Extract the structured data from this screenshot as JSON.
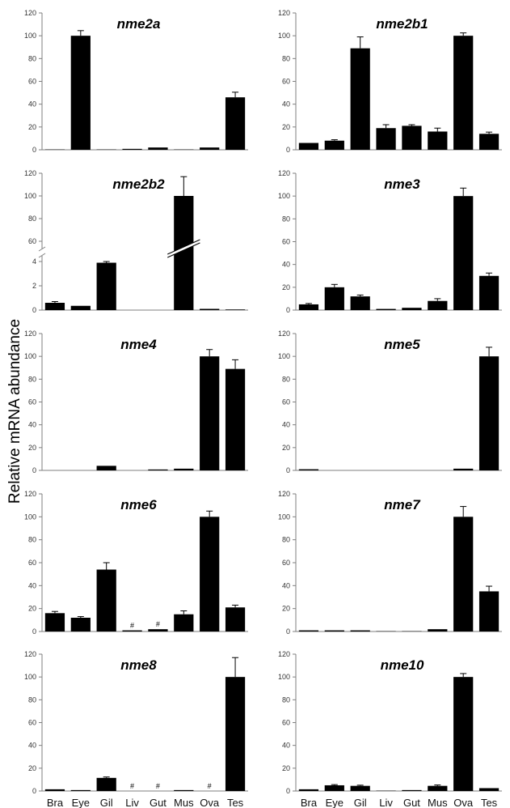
{
  "figure": {
    "ylabel": "Relative mRNA abundance",
    "categories": [
      "Bra",
      "Eye",
      "Gil",
      "Liv",
      "Gut",
      "Mus",
      "Ova",
      "Tes"
    ],
    "colors": {
      "bar": "#000000",
      "axis": "#7f7f7f"
    }
  },
  "chart_data": [
    {
      "type": "bar",
      "title": "nme2a",
      "ylim": [
        0,
        120
      ],
      "yticks": [
        0,
        20,
        40,
        60,
        80,
        100,
        120
      ],
      "categories": [
        "Bra",
        "Eye",
        "Gil",
        "Liv",
        "Gut",
        "Mus",
        "Ova",
        "Tes"
      ],
      "values": [
        0.3,
        100,
        0.3,
        0.8,
        2,
        0.3,
        2,
        46
      ],
      "errors": [
        0,
        4.5,
        0,
        0,
        0,
        0,
        0,
        4.5
      ]
    },
    {
      "type": "bar",
      "title": "nme2b1",
      "ylim": [
        0,
        120
      ],
      "yticks": [
        0,
        20,
        40,
        60,
        80,
        100,
        120
      ],
      "categories": [
        "Bra",
        "Eye",
        "Gil",
        "Liv",
        "Gut",
        "Mus",
        "Ova",
        "Tes"
      ],
      "values": [
        6,
        8,
        89,
        19,
        21,
        16,
        100,
        14
      ],
      "errors": [
        0,
        0.8,
        10,
        3,
        1,
        3,
        2.5,
        1.5
      ]
    },
    {
      "type": "bar",
      "title": "nme2b2",
      "broken_axis": true,
      "yticks": [
        0,
        2,
        4,
        60,
        80,
        100,
        120
      ],
      "categories": [
        "Bra",
        "Eye",
        "Gil",
        "Liv",
        "Gut",
        "Mus",
        "Ova",
        "Tes"
      ],
      "values": [
        0.6,
        0.35,
        3.9,
        0,
        0,
        100,
        0.1,
        0.05
      ],
      "errors": [
        0.1,
        0,
        0.35,
        0,
        0,
        17,
        0,
        0
      ]
    },
    {
      "type": "bar",
      "title": "nme3",
      "ylim": [
        0,
        120
      ],
      "yticks": [
        0,
        20,
        40,
        60,
        80,
        100,
        120
      ],
      "categories": [
        "Bra",
        "Eye",
        "Gil",
        "Liv",
        "Gut",
        "Mus",
        "Ova",
        "Tes"
      ],
      "values": [
        5,
        20,
        12,
        1,
        2,
        8,
        100,
        30
      ],
      "errors": [
        0.8,
        2.5,
        1.2,
        0,
        0,
        2,
        7,
        2.5
      ]
    },
    {
      "type": "bar",
      "title": "nme4",
      "ylim": [
        0,
        120
      ],
      "yticks": [
        0,
        20,
        40,
        60,
        80,
        100,
        120
      ],
      "categories": [
        "Bra",
        "Eye",
        "Gil",
        "Liv",
        "Gut",
        "Mus",
        "Ova",
        "Tes"
      ],
      "values": [
        0,
        0,
        4,
        0,
        0.8,
        1.5,
        100,
        89
      ],
      "errors": [
        0,
        0,
        0,
        0,
        0,
        0,
        6,
        8
      ]
    },
    {
      "type": "bar",
      "title": "nme5",
      "ylim": [
        0,
        120
      ],
      "yticks": [
        0,
        20,
        40,
        60,
        80,
        100,
        120
      ],
      "categories": [
        "Bra",
        "Eye",
        "Gil",
        "Liv",
        "Gut",
        "Mus",
        "Ova",
        "Tes"
      ],
      "values": [
        1,
        0,
        0,
        0,
        0,
        0,
        1.5,
        100
      ],
      "errors": [
        0,
        0,
        0,
        0,
        0,
        0,
        0,
        8
      ]
    },
    {
      "type": "bar",
      "title": "nme6",
      "ylim": [
        0,
        120
      ],
      "yticks": [
        0,
        20,
        40,
        60,
        80,
        100,
        120
      ],
      "categories": [
        "Bra",
        "Eye",
        "Gil",
        "Liv",
        "Gut",
        "Mus",
        "Ova",
        "Tes"
      ],
      "values": [
        16,
        12,
        54,
        1,
        2,
        15,
        100,
        21
      ],
      "errors": [
        1.5,
        1,
        6,
        0,
        0,
        3,
        5,
        2
      ],
      "markers": [
        "",
        "",
        "",
        "#",
        "#",
        "",
        "",
        ""
      ]
    },
    {
      "type": "bar",
      "title": "nme7",
      "ylim": [
        0,
        120
      ],
      "yticks": [
        0,
        20,
        40,
        60,
        80,
        100,
        120
      ],
      "categories": [
        "Bra",
        "Eye",
        "Gil",
        "Liv",
        "Gut",
        "Mus",
        "Ova",
        "Tes"
      ],
      "values": [
        1,
        1,
        1,
        0.3,
        0.3,
        2,
        100,
        35
      ],
      "errors": [
        0,
        0,
        0,
        0,
        0,
        0,
        9,
        4.5
      ]
    },
    {
      "type": "bar",
      "title": "nme8",
      "ylim": [
        0,
        120
      ],
      "yticks": [
        0,
        20,
        40,
        60,
        80,
        100,
        120
      ],
      "categories": [
        "Bra",
        "Eye",
        "Gil",
        "Liv",
        "Gut",
        "Mus",
        "Ova",
        "Tes"
      ],
      "values": [
        1.5,
        0.8,
        11.5,
        0,
        0,
        0.8,
        0,
        100
      ],
      "errors": [
        0,
        0,
        0.8,
        0,
        0,
        0,
        0,
        17
      ],
      "markers": [
        "",
        "",
        "",
        "#",
        "#",
        "",
        "#",
        ""
      ]
    },
    {
      "type": "bar",
      "title": "nme10",
      "ylim": [
        0,
        120
      ],
      "yticks": [
        0,
        20,
        40,
        60,
        80,
        100,
        120
      ],
      "categories": [
        "Bra",
        "Eye",
        "Gil",
        "Liv",
        "Gut",
        "Mus",
        "Ova",
        "Tes"
      ],
      "values": [
        1.5,
        5,
        4.5,
        0.3,
        0.8,
        4.5,
        100,
        2.5
      ],
      "errors": [
        0,
        0.6,
        0.6,
        0,
        0,
        0.8,
        3,
        0
      ]
    }
  ]
}
